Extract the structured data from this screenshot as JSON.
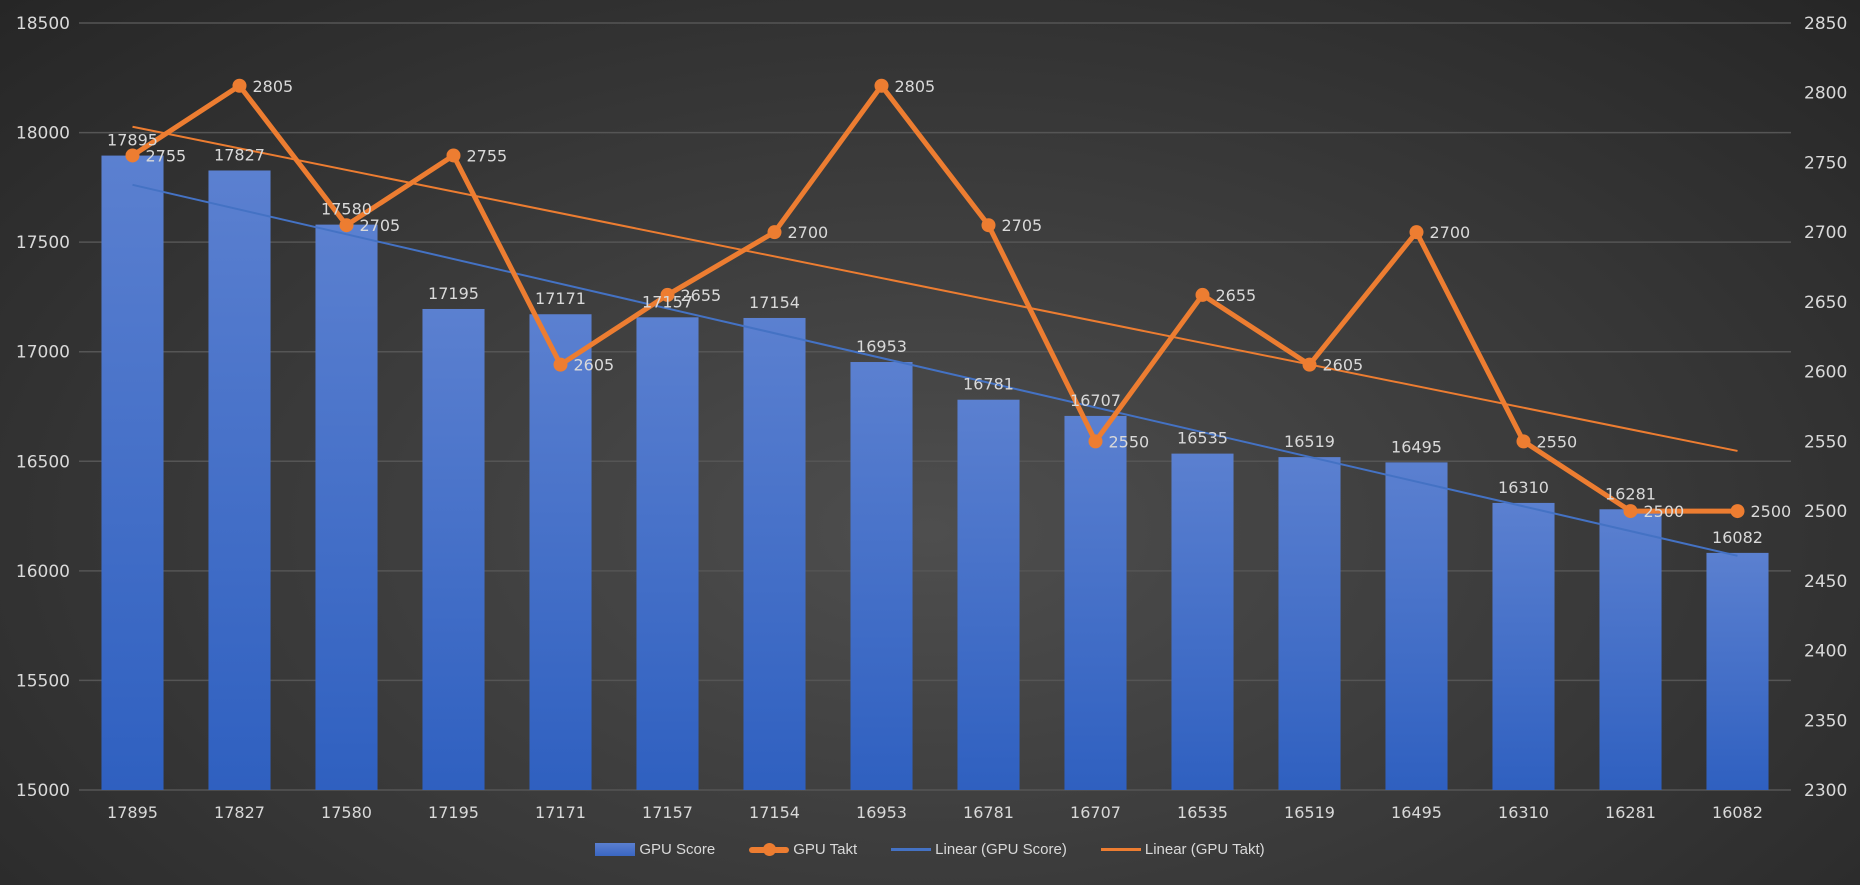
{
  "chart_data": {
    "type": "bar+line",
    "categories": [
      "17895",
      "17827",
      "17580",
      "17195",
      "17171",
      "17157",
      "17154",
      "16953",
      "16781",
      "16707",
      "16535",
      "16519",
      "16495",
      "16310",
      "16281",
      "16082"
    ],
    "series": [
      {
        "name": "GPU Score",
        "type": "bar",
        "axis": "left",
        "color": "#4a72c8",
        "values": [
          17895,
          17827,
          17580,
          17195,
          17171,
          17157,
          17154,
          16953,
          16781,
          16707,
          16535,
          16519,
          16495,
          16310,
          16281,
          16082
        ]
      },
      {
        "name": "GPU Takt",
        "type": "line",
        "axis": "right",
        "color": "#ed7d31",
        "values": [
          2755,
          2805,
          2705,
          2755,
          2605,
          2655,
          2700,
          2805,
          2705,
          2550,
          2655,
          2605,
          2700,
          2550,
          2500,
          2500
        ]
      },
      {
        "name": "Linear (GPU Score)",
        "type": "trendline",
        "of": "GPU Score",
        "color": "#4472c4"
      },
      {
        "name": "Linear (GPU Takt)",
        "type": "trendline",
        "of": "GPU Takt",
        "color": "#ed7d31"
      }
    ],
    "y_left": {
      "min": 15000,
      "max": 18500,
      "ticks": [
        "15000",
        "15500",
        "16000",
        "16500",
        "17000",
        "17500",
        "18000",
        "18500"
      ]
    },
    "y_right": {
      "min": 2300,
      "max": 2850,
      "ticks": [
        "2300",
        "2350",
        "2400",
        "2450",
        "2500",
        "2550",
        "2600",
        "2650",
        "2700",
        "2750",
        "2800",
        "2850"
      ]
    },
    "grid": true,
    "legend": "bottom",
    "data_labels": true
  }
}
